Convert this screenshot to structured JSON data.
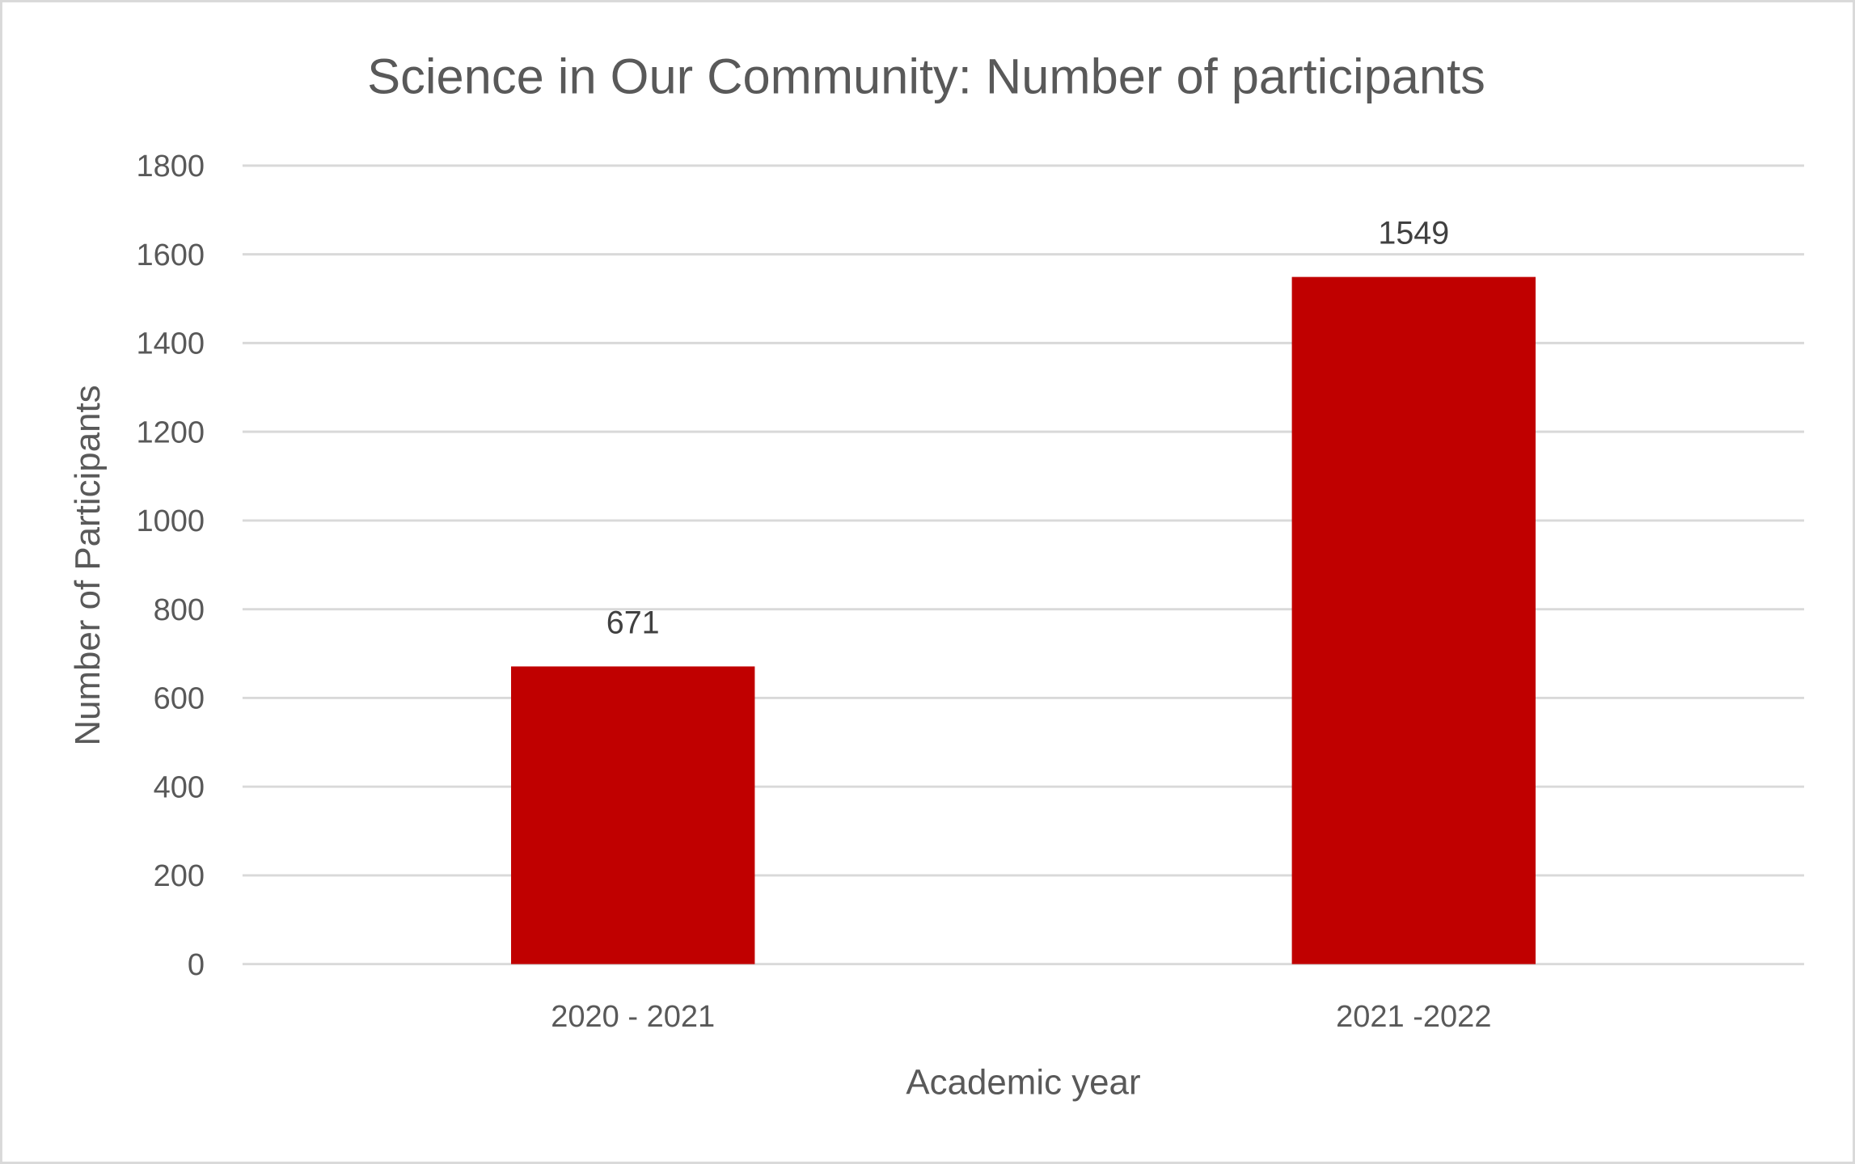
{
  "chart_data": {
    "type": "bar",
    "title": "Science in Our Community: Number of participants",
    "xlabel": "Academic year",
    "ylabel": "Number of Participants",
    "categories": [
      "2020 - 2021",
      "2021 -2022"
    ],
    "values": [
      671,
      1549
    ],
    "data_labels": [
      "671",
      "1549"
    ],
    "ylim": [
      0,
      1800
    ],
    "yticks": [
      "0",
      "200",
      "400",
      "600",
      "800",
      "1000",
      "1200",
      "1400",
      "1600",
      "1800"
    ],
    "grid": true,
    "legend": "none",
    "bar_color": "#C00000"
  }
}
